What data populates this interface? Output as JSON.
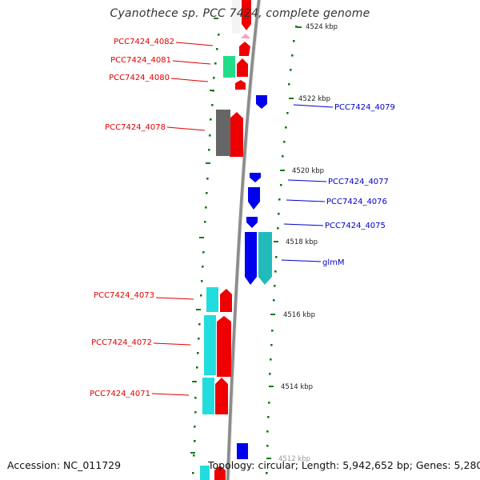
{
  "title": "Cyanothece sp. PCC 7424, complete genome",
  "footer": {
    "accession": "Accession: NC_011729",
    "summary": "Topology: circular; Length: 5,942,652 bp; Genes: 5,280"
  },
  "colors": {
    "backbone": "#8c8c8c",
    "tick": "#1a7a1a",
    "forward_label": "#e00000",
    "reverse_label": "#0000cc",
    "cds_forward": "#ee0000",
    "cds_reverse": "#0000ee",
    "cds_forward_small": "#ff99cc",
    "cog_cyan": "#22dddd",
    "cog_green": "#22dd88",
    "cog_gray": "#666666",
    "cog_teal": "#22bbbb"
  },
  "kbp_labels": [
    "4524 kbp",
    "4522 kbp",
    "4520 kbp",
    "4518 kbp",
    "4516 kbp",
    "4514 kbp",
    "4512 kbp"
  ],
  "forward_genes": [
    "PCC7424_4082",
    "PCC7424_4081",
    "PCC7424_4080",
    "PCC7424_4078",
    "PCC7424_4073",
    "PCC7424_4072",
    "PCC7424_4071"
  ],
  "reverse_genes": [
    "PCC7424_4079",
    "PCC7424_4077",
    "PCC7424_4076",
    "PCC7424_4075",
    "glmM"
  ]
}
